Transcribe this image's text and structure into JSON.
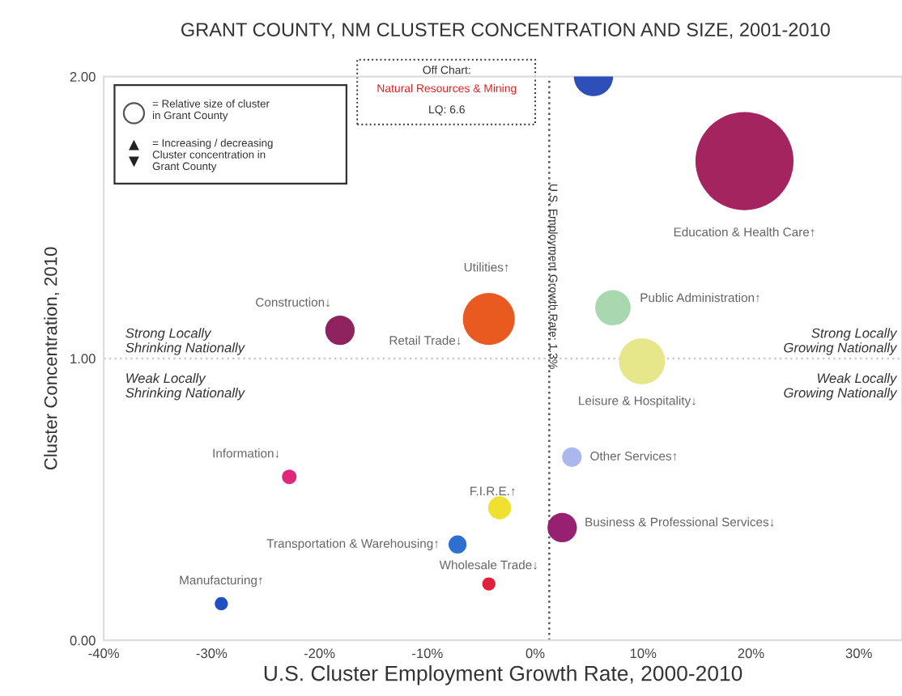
{
  "chart_data": {
    "type": "bubble",
    "title": "GRANT COUNTY, NM CLUSTER CONCENTRATION AND SIZE, 2001-2010",
    "xlabel": "U.S. Cluster Employment Growth Rate, 2000-2010",
    "ylabel": "Cluster Concentration, 2010",
    "xlim": [
      -40,
      34
    ],
    "xticks": [
      {
        "value": -40,
        "label": "-40%"
      },
      {
        "value": -30,
        "label": "-30%"
      },
      {
        "value": -20,
        "label": "-20%"
      },
      {
        "value": -10,
        "label": "-10%"
      },
      {
        "value": 0,
        "label": "0%"
      },
      {
        "value": 10,
        "label": "10%"
      },
      {
        "value": 20,
        "label": "20%"
      },
      {
        "value": 30,
        "label": "30%"
      }
    ],
    "ylim": [
      0,
      2
    ],
    "yticks": [
      {
        "value": 0,
        "label": "0.00"
      },
      {
        "value": 1,
        "label": "1.00"
      },
      {
        "value": 2,
        "label": "2.00"
      }
    ],
    "grid": false,
    "legend": false,
    "series": [
      {
        "name": "Education & Health Care↑",
        "color": "#a3245f",
        "x": [
          19.4
        ],
        "values": [
          1.7
        ],
        "sizes": [
          1.0
        ]
      },
      {
        "color": "#2f4fb8",
        "x": [
          5.4
        ],
        "values": [
          2.0
        ],
        "sizes": [
          0.16
        ]
      },
      {
        "name": "Construction↓",
        "color": "#8e2360",
        "x": [
          -18.1
        ],
        "values": [
          1.1
        ],
        "sizes": [
          0.09
        ]
      },
      {
        "name": "Retail Trade↓",
        "color": "#e85a20",
        "x": [
          -4.3
        ],
        "values": [
          1.14
        ],
        "sizes": [
          0.28
        ]
      },
      {
        "name": "Public Administration↑",
        "color": "#a9d8b0",
        "x": [
          7.2
        ],
        "values": [
          1.18
        ],
        "sizes": [
          0.13
        ]
      },
      {
        "name": "Leisure & Hospitality↓",
        "color": "#e6e68a",
        "x": [
          9.9
        ],
        "values": [
          0.99
        ],
        "sizes": [
          0.22
        ]
      },
      {
        "name": "Other Services↑",
        "color": "#aab8ee",
        "x": [
          3.4
        ],
        "values": [
          0.65
        ],
        "sizes": [
          0.04
        ]
      },
      {
        "name": "Information↓",
        "color": "#e0287a",
        "x": [
          -22.8
        ],
        "values": [
          0.58
        ],
        "sizes": [
          0.022
        ]
      },
      {
        "name": "F.I.R.E.↑",
        "color": "#f0e030",
        "x": [
          -3.3
        ],
        "values": [
          0.47
        ],
        "sizes": [
          0.055
        ]
      },
      {
        "name": "Transportation & Warehousing↑",
        "color": "#2f6fd0",
        "x": [
          -7.2
        ],
        "values": [
          0.34
        ],
        "sizes": [
          0.034
        ]
      },
      {
        "name": "Business & Professional Services↓",
        "color": "#982070",
        "x": [
          2.5
        ],
        "values": [
          0.4
        ],
        "sizes": [
          0.09
        ]
      },
      {
        "name": "Wholesale Trade↓",
        "color": "#e0203a",
        "x": [
          -4.3
        ],
        "values": [
          0.2
        ],
        "sizes": [
          0.018
        ]
      },
      {
        "name": "Manufacturing↑",
        "color": "#2050c0",
        "x": [
          -29.1
        ],
        "values": [
          0.13
        ],
        "sizes": [
          0.018
        ]
      }
    ],
    "ref_lines": [
      {
        "axis": "x",
        "value": 1.3,
        "label": "U.S. Employment Growth Rate: 1.3%",
        "color": "#555555",
        "line_style": "dotted"
      },
      {
        "axis": "y",
        "value": 1,
        "color": "#cccccc",
        "line_style": "dotted"
      }
    ],
    "annotations": [
      "Strong Locally\nShrinking Nationally",
      "Weak Locally\nShrinking Nationally",
      "Strong Locally\nGrowing Nationally",
      "Weak Locally\nGrowing Nationally",
      "= Relative size of cluster\nin Grant County",
      "= Increasing / decreasing\nCluster concentration in\nGrant County",
      "Off Chart:",
      "Natural Resources & Mining",
      "LQ: 6.6",
      "Utilities↑"
    ]
  }
}
